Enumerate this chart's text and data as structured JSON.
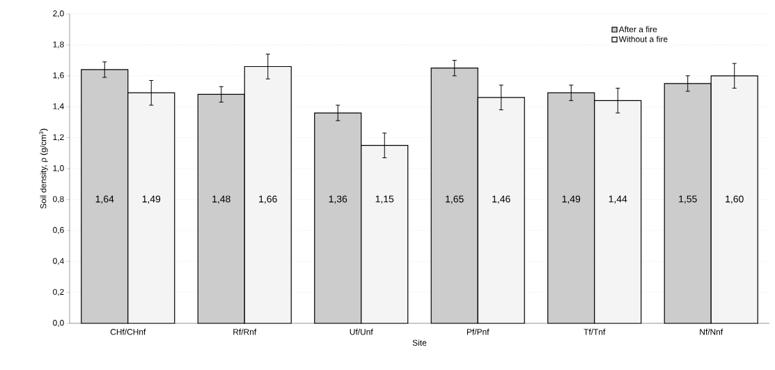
{
  "chart_data": {
    "type": "bar",
    "xlabel": "Site",
    "ylabel": "Soil density, ρ (g/cm$^{3}$)",
    "categories": [
      "CHf/CHnf",
      "Rf/Rnf",
      "Uf/Unf",
      "Pf/Pnf",
      "Tf/Tnf",
      "Nf/Nnf"
    ],
    "series": [
      {
        "name": "After a fire",
        "color": "#cccccc",
        "values": [
          1.64,
          1.48,
          1.36,
          1.65,
          1.49,
          1.55
        ],
        "errors": [
          0.05,
          0.05,
          0.05,
          0.05,
          0.05,
          0.05
        ],
        "value_labels": [
          "1,64",
          "1,48",
          "1,36",
          "1,65",
          "1,49",
          "1,55"
        ]
      },
      {
        "name": "Without a fire",
        "color": "#f4f4f4",
        "values": [
          1.49,
          1.66,
          1.15,
          1.46,
          1.44,
          1.6
        ],
        "errors": [
          0.08,
          0.08,
          0.08,
          0.08,
          0.08,
          0.08
        ],
        "value_labels": [
          "1,49",
          "1,66",
          "1,15",
          "1,46",
          "1,44",
          "1,60"
        ]
      }
    ],
    "ylim": [
      0,
      2
    ],
    "yticks": [
      {
        "value": 0,
        "label": "0,0"
      },
      {
        "value": 0.2,
        "label": "0,2"
      },
      {
        "value": 0.4,
        "label": "0,4"
      },
      {
        "value": 0.6,
        "label": "0,6"
      },
      {
        "value": 0.8,
        "label": "0,8"
      },
      {
        "value": 1.0,
        "label": "1,0"
      },
      {
        "value": 1.2,
        "label": "1,2"
      },
      {
        "value": 1.4,
        "label": "1,4"
      },
      {
        "value": 1.6,
        "label": "1,6"
      },
      {
        "value": 1.8,
        "label": "1,8"
      },
      {
        "value": 2.0,
        "label": "2,0"
      }
    ],
    "grid": "y",
    "legend": "top right"
  }
}
